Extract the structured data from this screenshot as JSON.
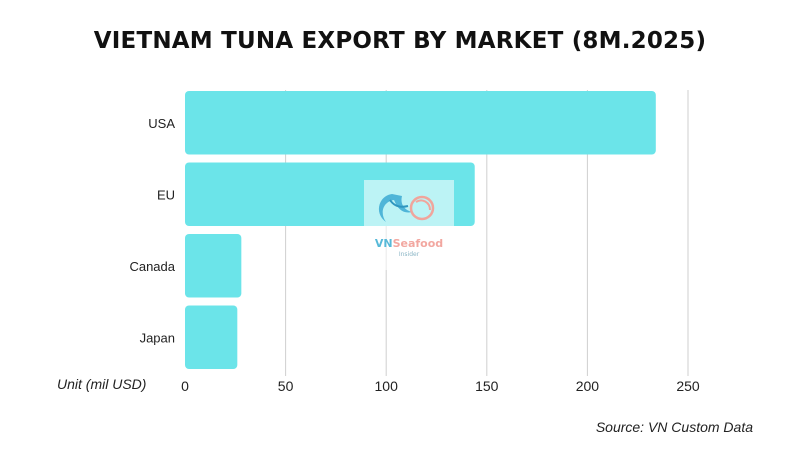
{
  "title": "VIETNAM TUNA EXPORT BY MARKET (8M.2025)",
  "unit_label": "Unit (mil USD)",
  "source": "Source: VN Custom Data",
  "watermark": {
    "brand_vn": "VN",
    "brand_rest": "Seafood",
    "sub": "Insider"
  },
  "colors": {
    "bar": "#6be4e9",
    "grid": "#cfcfcf",
    "text": "#222222"
  },
  "chart_data": {
    "type": "bar",
    "orientation": "horizontal",
    "categories": [
      "USA",
      "EU",
      "Canada",
      "Japan"
    ],
    "values": [
      234,
      144,
      28,
      26
    ],
    "xlim": [
      0,
      250
    ],
    "xticks": [
      0,
      50,
      100,
      150,
      200,
      250
    ],
    "grid": true,
    "xlabel": "Unit (mil USD)",
    "title": "VIETNAM TUNA EXPORT BY MARKET (8M.2025)"
  }
}
